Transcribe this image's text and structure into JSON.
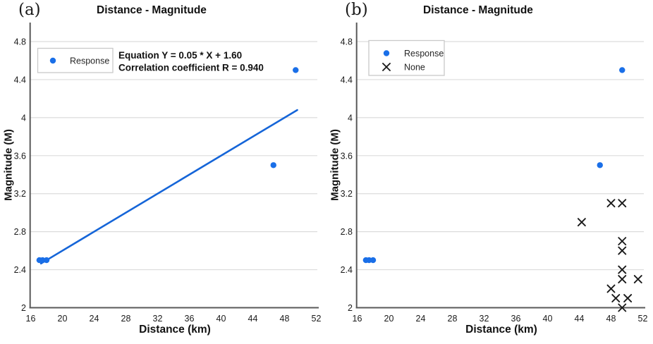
{
  "colors": {
    "response": "#1a6fe8",
    "trend": "#1565d8",
    "none_marker": "#1a1a1a",
    "grid": "#dcdcdc",
    "axis": "#595959",
    "text": "#1a1a1a",
    "legend_border": "#c9c9c9"
  },
  "chart_data": [
    {
      "tag": "(a)",
      "type": "scatter",
      "title": "Distance - Magnitude",
      "xlabel": "Distance (km)",
      "ylabel": "Magnitude (M)",
      "xlim": [
        16,
        52
      ],
      "ylim": [
        2,
        4.8
      ],
      "xticks": [
        16,
        20,
        24,
        28,
        32,
        36,
        40,
        44,
        48,
        52
      ],
      "yticks": [
        2,
        2.4,
        2.8,
        3.2,
        3.6,
        4,
        4.4,
        4.8
      ],
      "grid": "horizontal-only",
      "legend_position": "upper-left-inside",
      "series": [
        {
          "name": "Response",
          "marker": "circle",
          "color": "#1a6fe8",
          "points": [
            [
              17.1,
              2.5
            ],
            [
              17.5,
              2.5
            ],
            [
              18.0,
              2.5
            ],
            [
              46.6,
              3.5
            ],
            [
              49.4,
              4.5
            ]
          ]
        }
      ],
      "trendline": {
        "slope": 0.05,
        "intercept": 1.6,
        "x_start": 17.3,
        "x_end": 49.6,
        "color": "#1565d8"
      },
      "annotation": [
        "Equation Y = 0.05 * X + 1.60",
        "Correlation coefficient R = 0.940"
      ]
    },
    {
      "tag": "(b)",
      "type": "scatter",
      "title": "Distance - Magnitude",
      "xlabel": "Distance (km)",
      "ylabel": "Magnitude (M)",
      "xlim": [
        16,
        52
      ],
      "ylim": [
        2,
        4.8
      ],
      "xticks": [
        16,
        20,
        24,
        28,
        32,
        36,
        40,
        44,
        48,
        52
      ],
      "yticks": [
        2,
        2.4,
        2.8,
        3.2,
        3.6,
        4,
        4.4,
        4.8
      ],
      "grid": "horizontal-only",
      "legend_position": "upper-left-inside",
      "series": [
        {
          "name": "Response",
          "marker": "circle",
          "color": "#1a6fe8",
          "points": [
            [
              17.1,
              2.5
            ],
            [
              17.5,
              2.5
            ],
            [
              18.0,
              2.5
            ],
            [
              46.6,
              3.5
            ],
            [
              49.4,
              4.5
            ]
          ]
        },
        {
          "name": "None",
          "marker": "x",
          "color": "#1a1a1a",
          "points": [
            [
              48.0,
              3.1
            ],
            [
              49.4,
              3.1
            ],
            [
              44.3,
              2.9
            ],
            [
              49.4,
              2.7
            ],
            [
              49.4,
              2.6
            ],
            [
              49.4,
              2.4
            ],
            [
              49.4,
              2.3
            ],
            [
              51.4,
              2.3
            ],
            [
              48.0,
              2.2
            ],
            [
              48.6,
              2.1
            ],
            [
              50.1,
              2.1
            ],
            [
              49.4,
              2.0
            ]
          ]
        }
      ]
    }
  ]
}
